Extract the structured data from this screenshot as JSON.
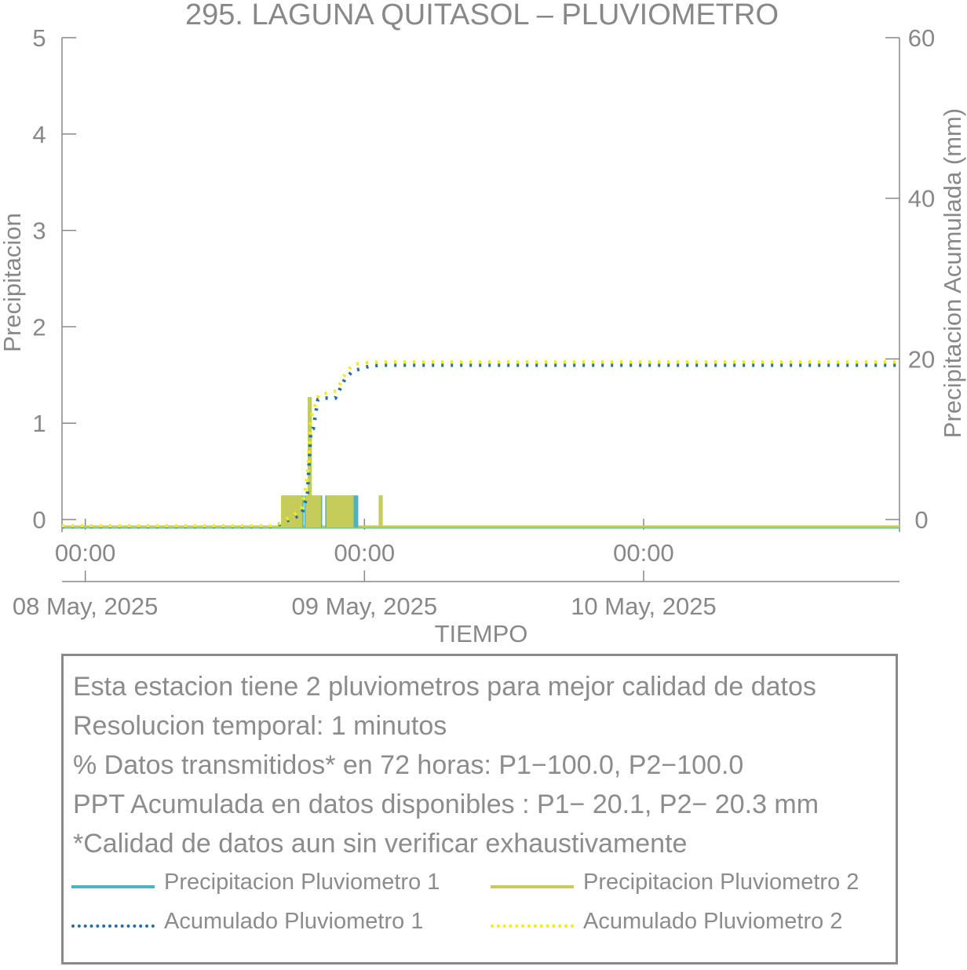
{
  "chart_data": {
    "type": "bar+line",
    "title": "295. LAGUNA QUITASOL – PLUVIOMETRO",
    "xlabel": "TIEMPO",
    "ylabel_left": "Precipitacion",
    "ylabel_right": "Precipitacion Acumulada (mm)",
    "ylim_left": [
      0,
      5
    ],
    "ylim_right": [
      0,
      60
    ],
    "yticks_left": [
      "0",
      "1",
      "2",
      "3",
      "4",
      "5"
    ],
    "yticks_right": [
      "0",
      "20",
      "40",
      "60"
    ],
    "xlim_hours": [
      -2,
      70
    ],
    "xticks": [
      {
        "hour": 0,
        "time": "00:00",
        "date": "08 May, 2025"
      },
      {
        "hour": 24,
        "time": "00:00",
        "date": "09 May, 2025"
      },
      {
        "hour": 48,
        "time": "00:00",
        "date": "10 May, 2025"
      }
    ],
    "grid": false,
    "colors": {
      "p1": "#4bb3c4",
      "p2": "#c5cc5a",
      "acc1": "#2a6e9c",
      "acc2": "#f5ea1e",
      "axis": "#888888"
    },
    "series": [
      {
        "name": "Precipitacion Pluviometro 1",
        "kind": "bars",
        "axis": "left",
        "points": [
          [
            17.1,
            0.25
          ],
          [
            17.4,
            0.25
          ],
          [
            17.7,
            0.25
          ],
          [
            18.0,
            0.25
          ],
          [
            18.3,
            0.25
          ],
          [
            18.6,
            0.25
          ],
          [
            19.0,
            0.25
          ],
          [
            19.3,
            1.27
          ],
          [
            19.6,
            0.25
          ],
          [
            19.9,
            0.25
          ],
          [
            20.2,
            0.25
          ],
          [
            20.8,
            0.25
          ],
          [
            21.0,
            0.25
          ],
          [
            21.3,
            0.25
          ],
          [
            21.6,
            0.25
          ],
          [
            21.9,
            0.25
          ],
          [
            22.2,
            0.25
          ],
          [
            22.5,
            0.25
          ],
          [
            22.8,
            0.25
          ],
          [
            23.1,
            0.25
          ],
          [
            23.3,
            0.25
          ],
          [
            25.4,
            0.25
          ]
        ]
      },
      {
        "name": "Precipitacion Pluviometro 2",
        "kind": "bars",
        "axis": "left",
        "points": [
          [
            17.0,
            0.25
          ],
          [
            17.3,
            0.25
          ],
          [
            17.6,
            0.25
          ],
          [
            17.9,
            0.25
          ],
          [
            18.2,
            0.25
          ],
          [
            18.5,
            0.25
          ],
          [
            19.1,
            0.25
          ],
          [
            19.3,
            1.27
          ],
          [
            19.5,
            0.25
          ],
          [
            19.8,
            0.25
          ],
          [
            20.1,
            0.25
          ],
          [
            20.9,
            0.25
          ],
          [
            21.1,
            0.25
          ],
          [
            21.4,
            0.25
          ],
          [
            21.7,
            0.25
          ],
          [
            22.0,
            0.25
          ],
          [
            22.3,
            0.25
          ],
          [
            22.6,
            0.25
          ],
          [
            22.9,
            0.25
          ],
          [
            25.4,
            0.25
          ]
        ]
      },
      {
        "name": "Acumulado Pluviometro 1",
        "kind": "dotted-line",
        "axis": "right",
        "points": [
          [
            -2,
            0
          ],
          [
            16.3,
            0
          ],
          [
            17.0,
            0.5
          ],
          [
            17.8,
            1.0
          ],
          [
            18.6,
            1.5
          ],
          [
            19.1,
            4.0
          ],
          [
            19.4,
            12.0
          ],
          [
            19.6,
            12.2
          ],
          [
            20.0,
            15.8
          ],
          [
            20.5,
            16.0
          ],
          [
            21.5,
            16.0
          ],
          [
            22.3,
            18.3
          ],
          [
            23.0,
            19.4
          ],
          [
            23.6,
            19.6
          ],
          [
            24.5,
            20.0
          ],
          [
            25.5,
            20.1
          ],
          [
            70,
            20.1
          ]
        ]
      },
      {
        "name": "Acumulado Pluviometro 2",
        "kind": "dotted-line",
        "axis": "right",
        "points": [
          [
            -2,
            0
          ],
          [
            16.3,
            0
          ],
          [
            17.0,
            0.6
          ],
          [
            17.8,
            1.2
          ],
          [
            18.6,
            2.0
          ],
          [
            19.1,
            6.0
          ],
          [
            19.4,
            13.5
          ],
          [
            19.7,
            14.8
          ],
          [
            20.1,
            16.4
          ],
          [
            20.8,
            16.5
          ],
          [
            21.6,
            16.8
          ],
          [
            22.3,
            18.8
          ],
          [
            23.0,
            20.1
          ],
          [
            24.0,
            20.3
          ],
          [
            25.5,
            20.4
          ],
          [
            70,
            20.4
          ]
        ]
      }
    ]
  },
  "info": {
    "lines": [
      "Esta estacion tiene 2 pluviometros para mejor calidad de datos",
      "Resolucion temporal: 1 minutos",
      "% Datos transmitidos* en 72 horas: P1−100.0, P2−100.0",
      "PPT Acumulada en datos disponibles : P1− 20.1, P2− 20.3 mm",
      "*Calidad de datos aun sin verificar exhaustivamente"
    ]
  },
  "legend": {
    "items": [
      {
        "label": "Precipitacion Pluviometro 1",
        "style": "solid",
        "color": "#4bb3c4"
      },
      {
        "label": "Precipitacion Pluviometro 2",
        "style": "solid",
        "color": "#c5cc5a"
      },
      {
        "label": "Acumulado Pluviometro 1",
        "style": "dotted",
        "color": "#2a6e9c"
      },
      {
        "label": "Acumulado Pluviometro 2",
        "style": "dotted",
        "color": "#f5ea1e"
      }
    ]
  }
}
